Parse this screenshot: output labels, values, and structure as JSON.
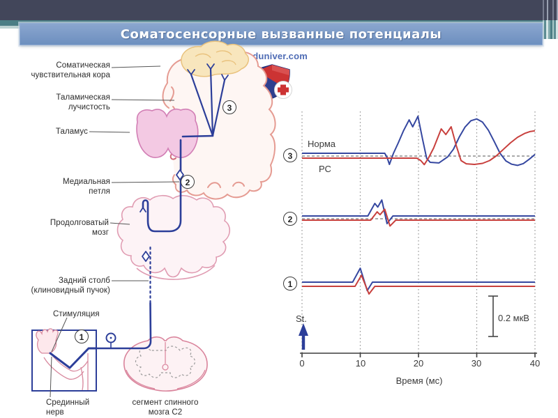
{
  "slide": {
    "title": "Соматосенсорные вызванные потенциалы"
  },
  "logo": {
    "text": "meduniver.com"
  },
  "theme": {
    "top_bar": "#42465a",
    "teal_accent": "#4b7e85",
    "banner_blue": "#7d9ac8",
    "pathway_blue": "#2c3e99",
    "trace_blue": "#3547a0",
    "trace_red": "#c8403d",
    "diagram_pink": "#e09cb2"
  },
  "diagram": {
    "labels": {
      "cortex": {
        "line1": "Соматическая",
        "line2": "чувствительная кора"
      },
      "radiation": {
        "line1": "Таламическая",
        "line2": "лучистость"
      },
      "thalamus": "Таламус",
      "medial_lemniscus": {
        "line1": "Медиальная",
        "line2": "петля"
      },
      "medulla": {
        "line1": "Продолговатый",
        "line2": "мозг"
      },
      "dorsal_column": {
        "line1": "Задний столб",
        "line2": "(клиновидный пучок)"
      },
      "stimulation": "Стимуляция",
      "median_nerve": {
        "line1": "Срединный",
        "line2": "нерв"
      },
      "spinal_segment": {
        "line1": "сегмент спинного",
        "line2": "мозга C2"
      }
    },
    "markers": {
      "m1": "1",
      "m2": "2",
      "m3": "3"
    }
  },
  "chart_data": {
    "type": "line",
    "xlabel": "Время (мс)",
    "xticks": [
      "0",
      "10",
      "20",
      "30",
      "40"
    ],
    "x_range_ms": [
      0,
      40
    ],
    "amplitude_unit": "мкВ",
    "stimulus_label": "St.",
    "scale_bar": {
      "label": "0.2 мкВ",
      "uv": 0.2
    },
    "legend": [
      {
        "label": "Норма",
        "color": "#3547a0"
      },
      {
        "label": "РС",
        "color": "#c8403d"
      }
    ],
    "panels": [
      {
        "id": "3",
        "marker": "3",
        "zero_line_dashed": true,
        "series": [
          {
            "name": "Норма",
            "color": "#3547a0",
            "points": [
              [
                0,
                0
              ],
              [
                14.2,
                0
              ],
              [
                14.6,
                -0.02
              ],
              [
                15.0,
                -0.055
              ],
              [
                15.7,
                0
              ],
              [
                16.5,
                0.05
              ],
              [
                17.4,
                0.11
              ],
              [
                18.4,
                0.165
              ],
              [
                19.0,
                0.131
              ],
              [
                19.9,
                0.183
              ],
              [
                20.7,
                0.07
              ],
              [
                21.4,
                -0.025
              ],
              [
                22.0,
                -0.045
              ],
              [
                23.5,
                -0.048
              ],
              [
                25.0,
                -0.018
              ],
              [
                26.0,
                0.02
              ],
              [
                27.0,
                0.08
              ],
              [
                28.0,
                0.13
              ],
              [
                29.0,
                0.161
              ],
              [
                30.0,
                0.17
              ],
              [
                31.0,
                0.154
              ],
              [
                32.0,
                0.114
              ],
              [
                33.0,
                0.058
              ],
              [
                34.0,
                0.0
              ],
              [
                35.0,
                -0.038
              ],
              [
                36.0,
                -0.054
              ],
              [
                37.0,
                -0.06
              ],
              [
                38.0,
                -0.051
              ],
              [
                39.0,
                -0.03
              ],
              [
                40.0,
                -0.006
              ]
            ]
          },
          {
            "name": "РС",
            "color": "#c8403d",
            "points": [
              [
                0,
                0
              ],
              [
                19.7,
                0
              ],
              [
                20.4,
                -0.012
              ],
              [
                21.0,
                -0.032
              ],
              [
                21.7,
                0.0
              ],
              [
                22.6,
                0.05
              ],
              [
                23.9,
                0.145
              ],
              [
                24.7,
                0.117
              ],
              [
                25.6,
                0.155
              ],
              [
                26.5,
                0.06
              ],
              [
                27.3,
                -0.012
              ],
              [
                28.2,
                -0.028
              ],
              [
                29.6,
                -0.031
              ],
              [
                31.0,
                -0.026
              ],
              [
                32.2,
                -0.012
              ],
              [
                33.4,
                0.012
              ],
              [
                34.6,
                0.044
              ],
              [
                35.8,
                0.076
              ],
              [
                37.0,
                0.103
              ],
              [
                38.2,
                0.122
              ],
              [
                39.2,
                0.132
              ],
              [
                40.0,
                0.135
              ]
            ]
          }
        ]
      },
      {
        "id": "2",
        "marker": "2",
        "zero_line_dashed": true,
        "series": [
          {
            "name": "Норма",
            "color": "#3547a0",
            "points": [
              [
                0,
                0
              ],
              [
                11.3,
                0
              ],
              [
                12.5,
                0.062
              ],
              [
                13.0,
                0.044
              ],
              [
                13.7,
                0.079
              ],
              [
                14.6,
                -0.038
              ],
              [
                15.6,
                0
              ],
              [
                40,
                0
              ]
            ]
          },
          {
            "name": "РС",
            "color": "#c8403d",
            "points": [
              [
                0,
                0
              ],
              [
                11.8,
                0
              ],
              [
                12.9,
                0.041
              ],
              [
                13.4,
                0.027
              ],
              [
                14.2,
                0.054
              ],
              [
                15.1,
                -0.029
              ],
              [
                16.1,
                0
              ],
              [
                40,
                0
              ]
            ]
          }
        ]
      },
      {
        "id": "1",
        "marker": "1",
        "zero_line_dashed": false,
        "series": [
          {
            "name": "Норма",
            "color": "#3547a0",
            "points": [
              [
                0,
                0
              ],
              [
                8.7,
                0
              ],
              [
                10.0,
                0.069
              ],
              [
                11.2,
                -0.042
              ],
              [
                12.1,
                0
              ],
              [
                40,
                0
              ]
            ]
          },
          {
            "name": "РС",
            "color": "#c8403d",
            "points": [
              [
                0,
                0
              ],
              [
                9.1,
                0
              ],
              [
                10.2,
                0.055
              ],
              [
                11.5,
                -0.038
              ],
              [
                12.5,
                0
              ],
              [
                40,
                0
              ]
            ]
          }
        ]
      }
    ]
  }
}
